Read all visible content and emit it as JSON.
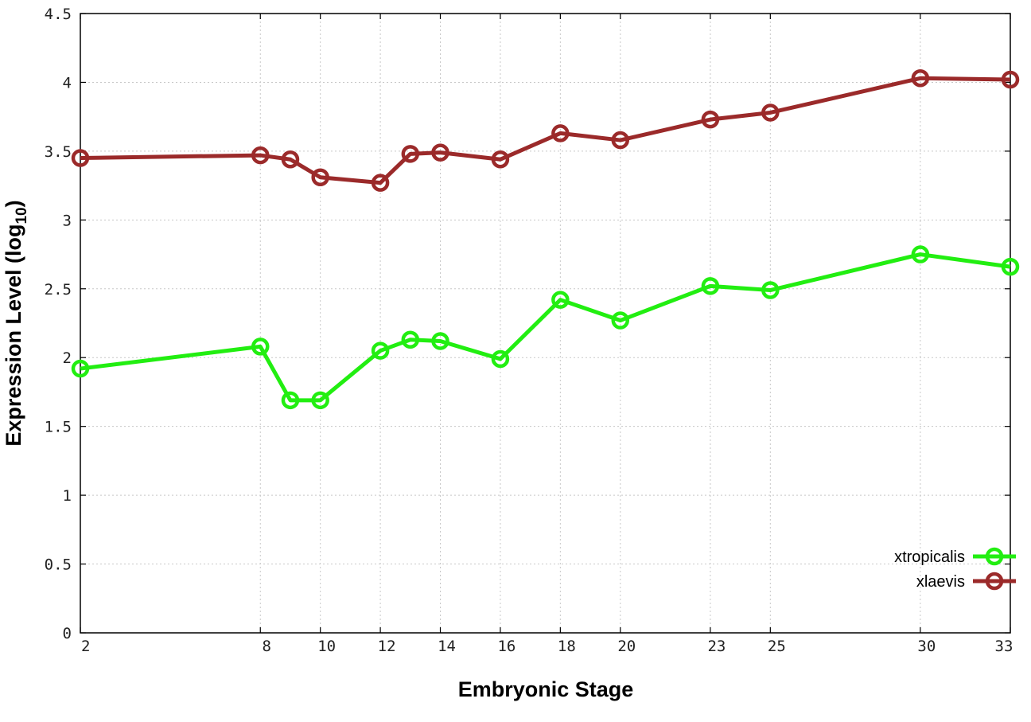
{
  "chart_data": {
    "type": "line",
    "title": "",
    "xlabel": "Embryonic Stage",
    "ylabel": "Expression Level (log10)",
    "ylabel_parts": {
      "main": "Expression Level (log",
      "sub": "10",
      "close": ")"
    },
    "x": [
      2,
      8,
      9,
      10,
      12,
      13,
      14,
      16,
      18,
      20,
      23,
      25,
      30,
      33
    ],
    "x_ticks": [
      2,
      8,
      10,
      12,
      14,
      16,
      18,
      20,
      23,
      25,
      30,
      33
    ],
    "xlim": [
      2,
      33
    ],
    "ylim": [
      0,
      4.5
    ],
    "y_ticks": [
      0,
      0.5,
      1,
      1.5,
      2,
      2.5,
      3,
      3.5,
      4,
      4.5
    ],
    "y_tick_labels": [
      "0",
      "0.5",
      "1",
      "1.5",
      "2",
      "2.5",
      "3",
      "3.5",
      "4",
      "4.5"
    ],
    "grid": true,
    "legend_position": "bottom-right",
    "series": [
      {
        "name": "xtropicalis",
        "color": "#22ee11",
        "marker": "circle-open",
        "values": [
          1.92,
          2.08,
          1.69,
          1.69,
          2.05,
          2.13,
          2.12,
          1.99,
          2.42,
          2.27,
          2.52,
          2.49,
          2.75,
          2.66
        ]
      },
      {
        "name": "xlaevis",
        "color": "#9b2a2a",
        "marker": "circle-open",
        "values": [
          3.45,
          3.47,
          3.44,
          3.31,
          3.27,
          3.48,
          3.49,
          3.44,
          3.63,
          3.58,
          3.73,
          3.78,
          4.03,
          4.02
        ]
      }
    ]
  }
}
